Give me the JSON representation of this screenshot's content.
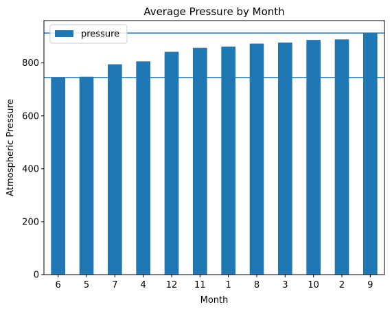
{
  "chart_data": {
    "type": "bar",
    "title": "Average Pressure by Month",
    "xlabel": "Month",
    "ylabel": "Atmospheric Pressure",
    "categories": [
      "6",
      "5",
      "7",
      "4",
      "12",
      "11",
      "1",
      "8",
      "3",
      "10",
      "2",
      "9"
    ],
    "series": [
      {
        "name": "pressure",
        "values": [
          745,
          748,
          795,
          806,
          842,
          857,
          862,
          873,
          877,
          887,
          889,
          913
        ]
      }
    ],
    "ylim": [
      0,
      960
    ],
    "yticks": [
      0,
      200,
      400,
      600,
      800
    ],
    "hlines": [
      745,
      913
    ],
    "legend": "top-left",
    "grid": false,
    "colors": {
      "bar": "#1f77b4",
      "hline": "#1f77b4"
    }
  }
}
